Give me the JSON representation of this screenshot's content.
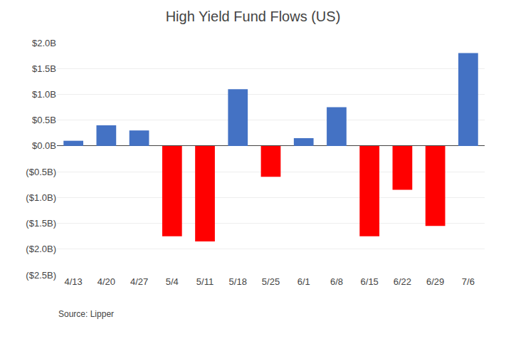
{
  "chart_data": {
    "type": "bar",
    "title": "High Yield Fund Flows (US)",
    "categories": [
      "4/13",
      "4/20",
      "4/27",
      "5/4",
      "5/11",
      "5/18",
      "5/25",
      "6/1",
      "6/8",
      "6/15",
      "6/22",
      "6/29",
      "7/6"
    ],
    "values": [
      0.1,
      0.4,
      0.3,
      -1.75,
      -1.85,
      1.1,
      -0.6,
      0.15,
      0.75,
      -1.75,
      -0.85,
      -1.55,
      1.8
    ],
    "colors": [
      "#4472C4",
      "#4472C4",
      "#4472C4",
      "#FF0000",
      "#FF0000",
      "#4472C4",
      "#FF0000",
      "#4472C4",
      "#4472C4",
      "#FF0000",
      "#FF0000",
      "#FF0000",
      "#4472C4"
    ],
    "ylim": [
      -2.5,
      2.0
    ],
    "yticks": [
      {
        "value": -2.5,
        "label": "($2.5B)"
      },
      {
        "value": -2.0,
        "label": "($2.0B)"
      },
      {
        "value": -1.5,
        "label": "($1.5B)"
      },
      {
        "value": -1.0,
        "label": "($1.0B)"
      },
      {
        "value": -0.5,
        "label": "($0.5B)"
      },
      {
        "value": 0.0,
        "label": "$0.0B"
      },
      {
        "value": 0.5,
        "label": "$0.5B"
      },
      {
        "value": 1.0,
        "label": "$1.0B"
      },
      {
        "value": 1.5,
        "label": "$1.5B"
      },
      {
        "value": 2.0,
        "label": "$2.0B"
      }
    ],
    "grid": true,
    "annotations": [
      "Source: Lipper"
    ]
  }
}
